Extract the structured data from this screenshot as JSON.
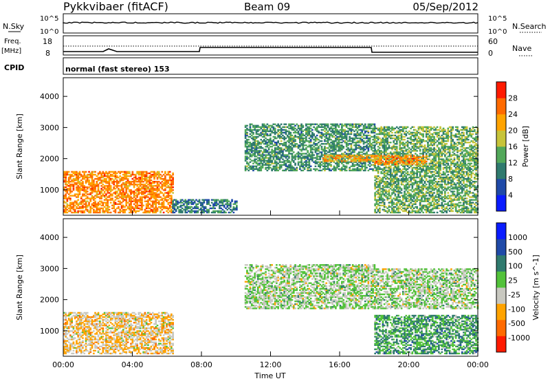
{
  "header": {
    "station": "Pykkvibaer (fitACF)",
    "beam": "Beam 09",
    "date": "05/Sep/2012"
  },
  "strip_nsky": {
    "left_label": "N.Sky",
    "left_ticks": [
      "10^5",
      "10^0"
    ],
    "right_ticks": [
      "10^5",
      "10^0"
    ],
    "right_label": "N.Search"
  },
  "strip_freq": {
    "left_label": "Freq.",
    "left_unit": "[MHz]",
    "left_ticks": [
      "18",
      "8"
    ],
    "right_ticks": [
      "60",
      "0"
    ],
    "right_label": "Nave"
  },
  "cpid": {
    "label": "CPID",
    "value": "normal (fast stereo) 153"
  },
  "chart_data": [
    {
      "type": "heatmap",
      "title": "",
      "xlabel": "Time UT",
      "ylabel": "Slant Range [km]",
      "x_ticks": [
        "00:00",
        "04:00",
        "08:00",
        "12:00",
        "16:00",
        "20:00",
        "00:00"
      ],
      "xlim": [
        0,
        24
      ],
      "y_ticks": [
        "1000",
        "2000",
        "3000",
        "4000"
      ],
      "ylim": [
        180,
        4600
      ],
      "colorbar": {
        "label": "Power [dB]",
        "ticks": [
          "4",
          "8",
          "12",
          "16",
          "20",
          "24",
          "28"
        ],
        "range": [
          0,
          32
        ],
        "colors": [
          "#0a1cff",
          "#1f4aa8",
          "#2f7a6e",
          "#52a85a",
          "#c7c43a",
          "#ffa300",
          "#ff6a00",
          "#ff1a00"
        ]
      },
      "regions": [
        {
          "t0": 0.0,
          "t1": 6.3,
          "r0": 250,
          "r1": 1600,
          "level": 24
        },
        {
          "t0": 6.3,
          "t1": 10.0,
          "r0": 250,
          "r1": 700,
          "level": 10
        },
        {
          "t0": 10.5,
          "t1": 18.0,
          "r0": 1600,
          "r1": 3100,
          "level": 12
        },
        {
          "t0": 15.0,
          "t1": 18.0,
          "r0": 1900,
          "r1": 2100,
          "level": 22
        },
        {
          "t0": 18.0,
          "t1": 24.0,
          "r0": 250,
          "r1": 3000,
          "level": 14
        },
        {
          "t0": 18.0,
          "t1": 21.0,
          "r0": 1800,
          "r1": 2100,
          "level": 24
        }
      ]
    },
    {
      "type": "heatmap",
      "title": "",
      "xlabel": "Time UT",
      "ylabel": "Slant Range [km]",
      "x_ticks": [
        "00:00",
        "04:00",
        "08:00",
        "12:00",
        "16:00",
        "20:00",
        "00:00"
      ],
      "xlim": [
        0,
        24
      ],
      "y_ticks": [
        "1000",
        "2000",
        "3000",
        "4000"
      ],
      "ylim": [
        180,
        4600
      ],
      "colorbar": {
        "label": "Velocity [m s^-1]",
        "ticks": [
          "1000",
          "500",
          "100",
          "25",
          "-25",
          "-100",
          "-500",
          "-1000"
        ],
        "range": [
          -1200,
          1200
        ],
        "colors": [
          "#ff1a00",
          "#ff6a00",
          "#ffa300",
          "#c8c8c0",
          "#52c23a",
          "#2f7a6e",
          "#1f4aa8",
          "#0a1cff"
        ]
      },
      "regions": [
        {
          "t0": 0.0,
          "t1": 6.3,
          "r0": 250,
          "r1": 1600,
          "level": -300
        },
        {
          "t0": 10.5,
          "t1": 18.0,
          "r0": 1700,
          "r1": 3100,
          "level": 0
        },
        {
          "t0": 18.0,
          "t1": 24.0,
          "r0": 1700,
          "r1": 3000,
          "level": 0
        },
        {
          "t0": 18.0,
          "t1": 24.0,
          "r0": 250,
          "r1": 1500,
          "level": 300
        }
      ]
    }
  ]
}
